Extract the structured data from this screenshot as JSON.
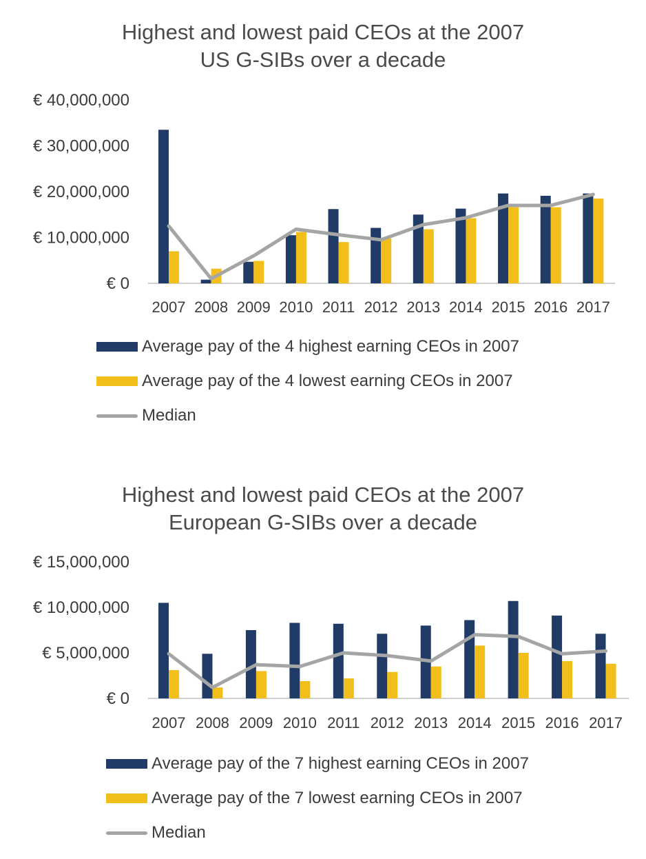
{
  "colors": {
    "high": "#1f3b66",
    "low": "#f2be1a",
    "median": "#a5a5a5",
    "axis": "#bfbfbf"
  },
  "chart_data": [
    {
      "type": "bar",
      "title_lines": [
        "Highest and lowest paid CEOs at the 2007",
        "US G-SIBs over a decade"
      ],
      "categories": [
        "2007",
        "2008",
        "2009",
        "2010",
        "2011",
        "2012",
        "2013",
        "2014",
        "2015",
        "2016",
        "2017"
      ],
      "ylim": [
        0,
        40000000
      ],
      "yticks": [
        0,
        10000000,
        20000000,
        30000000,
        40000000
      ],
      "ytick_labels": [
        "€ 0",
        "€ 10,000,000",
        "€ 20,000,000",
        "€ 30,000,000",
        "€ 40,000,000"
      ],
      "series": [
        {
          "name": "Average pay of the 4 highest earning CEOs in 2007",
          "kind": "bar",
          "values": [
            33500000,
            800000,
            4700000,
            10500000,
            16200000,
            12100000,
            15000000,
            16300000,
            19600000,
            19100000,
            19600000
          ]
        },
        {
          "name": "Average pay of the 4 lowest earning CEOs in 2007",
          "kind": "bar",
          "values": [
            7000000,
            3200000,
            4900000,
            11200000,
            9000000,
            9800000,
            11800000,
            14200000,
            16600000,
            16600000,
            18500000
          ]
        },
        {
          "name": "Median",
          "kind": "line",
          "values": [
            12500000,
            1000000,
            6000000,
            11800000,
            10600000,
            9500000,
            12800000,
            14300000,
            17000000,
            17000000,
            19400000
          ]
        }
      ]
    },
    {
      "type": "bar",
      "title_lines": [
        "Highest and lowest paid CEOs at the 2007",
        "European G-SIBs over a decade"
      ],
      "categories": [
        "2007",
        "2008",
        "2009",
        "2010",
        "2011",
        "2012",
        "2013",
        "2014",
        "2015",
        "2016",
        "2017"
      ],
      "ylim": [
        0,
        15000000
      ],
      "yticks": [
        0,
        5000000,
        10000000,
        15000000
      ],
      "ytick_labels": [
        "€ 0",
        "€ 5,000,000",
        "€ 10,000,000",
        "€ 15,000,000"
      ],
      "series": [
        {
          "name": "Average pay of the 7 highest earning CEOs in 2007",
          "kind": "bar",
          "values": [
            10500000,
            4900000,
            7500000,
            8300000,
            8200000,
            7100000,
            8000000,
            8600000,
            10700000,
            9100000,
            7100000
          ]
        },
        {
          "name": "Average pay of the 7 lowest earning CEOs in 2007",
          "kind": "bar",
          "values": [
            3100000,
            1200000,
            3000000,
            1900000,
            2200000,
            2900000,
            3500000,
            5800000,
            5000000,
            4100000,
            3800000
          ]
        },
        {
          "name": "Median",
          "kind": "line",
          "values": [
            4900000,
            1200000,
            3700000,
            3500000,
            5000000,
            4700000,
            4100000,
            7000000,
            6800000,
            4900000,
            5200000
          ]
        }
      ]
    }
  ]
}
